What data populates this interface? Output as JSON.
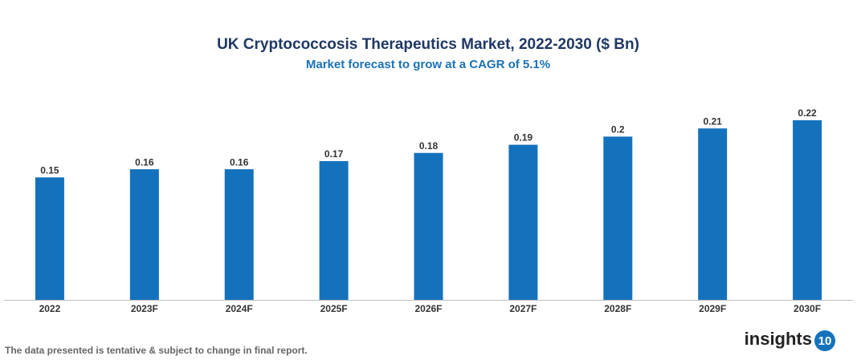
{
  "chart_data": {
    "type": "bar",
    "title": "UK Cryptococcosis Therapeutics Market, 2022-2030 ($ Bn)",
    "subtitle": "Market forecast to grow at a CAGR of 5.1%",
    "categories": [
      "2022",
      "2023F",
      "2024F",
      "2025F",
      "2026F",
      "2027F",
      "2028F",
      "2029F",
      "2030F"
    ],
    "values": [
      0.15,
      0.16,
      0.16,
      0.17,
      0.18,
      0.19,
      0.2,
      0.21,
      0.22
    ],
    "color": "#1472bd"
  },
  "footer": {
    "note": "The data presented is tentative & subject to change in final report.",
    "logo_text": "insights",
    "logo_badge": "10"
  }
}
